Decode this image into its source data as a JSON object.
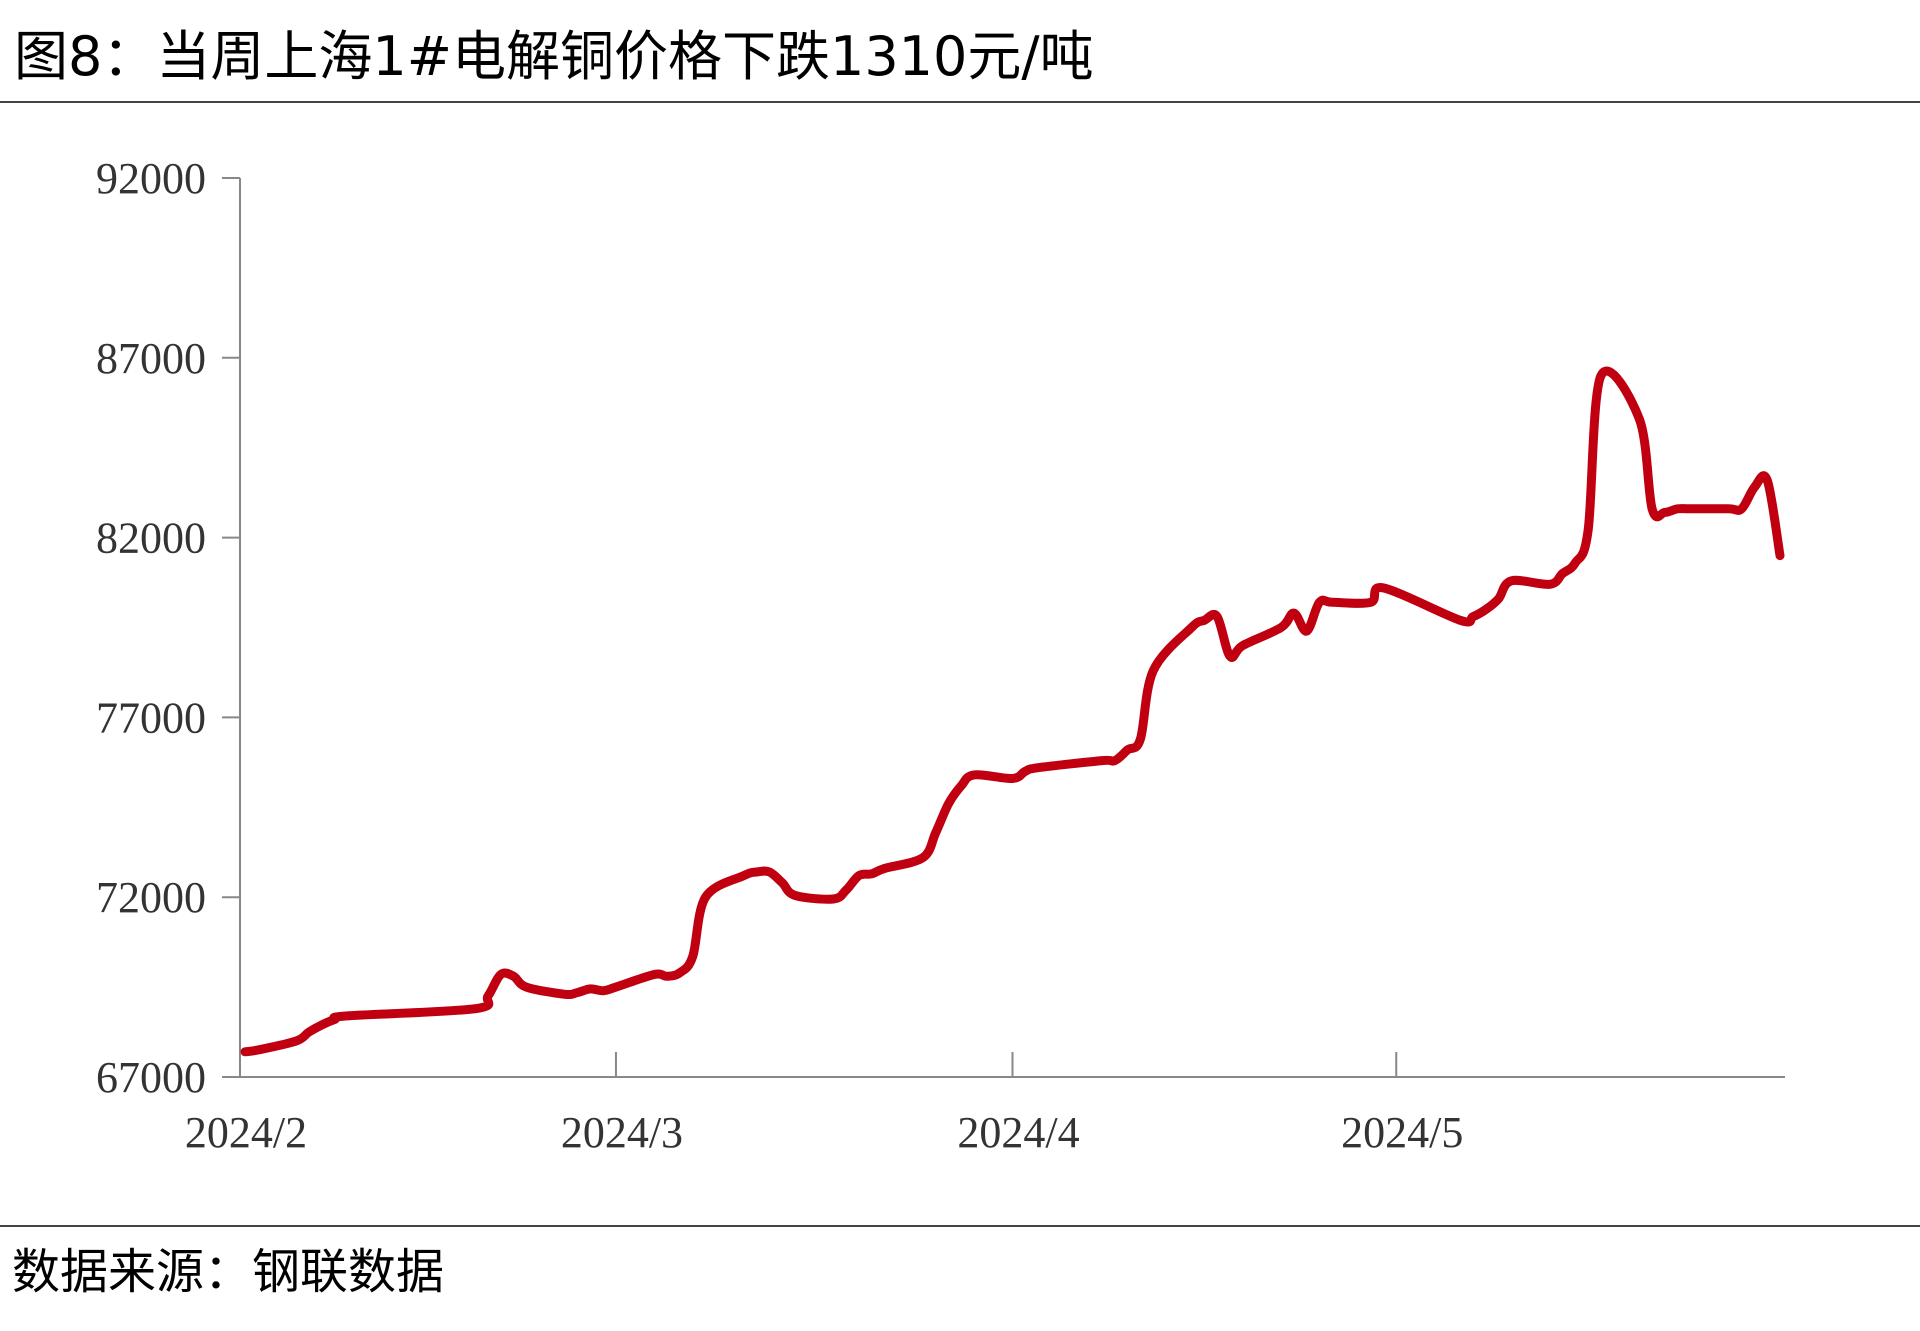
{
  "header": {
    "title": "图8：当周上海1#电解铜价格下跌1310元/吨"
  },
  "footer": {
    "source": "数据来源：钢联数据"
  },
  "colors": {
    "line": "#c00010",
    "axis": "#888888",
    "text": "#333333"
  },
  "chart_data": {
    "type": "line",
    "title": "图8：当周上海1#电解铜价格下跌1310元/吨",
    "xlabel": "",
    "ylabel": "",
    "ylim": [
      67000,
      92000
    ],
    "yticks": [
      "92000",
      "87000",
      "82000",
      "77000",
      "72000",
      "67000"
    ],
    "xticks": [
      "2024/2",
      "2024/3",
      "2024/4",
      "2024/5"
    ],
    "grid": false,
    "legend": "none",
    "series": [
      {
        "name": "",
        "x": [
          "2024-02-01",
          "2024-02-02",
          "2024-02-05",
          "2024-02-06",
          "2024-02-07",
          "2024-02-08",
          "2024-02-09",
          "2024-02-19",
          "2024-02-20",
          "2024-02-21",
          "2024-02-22",
          "2024-02-23",
          "2024-02-26",
          "2024-02-27",
          "2024-02-28",
          "2024-02-29",
          "2024-03-01",
          "2024-03-04",
          "2024-03-05",
          "2024-03-06",
          "2024-03-07",
          "2024-03-08",
          "2024-03-11",
          "2024-03-12",
          "2024-03-13",
          "2024-03-14",
          "2024-03-15",
          "2024-03-18",
          "2024-03-19",
          "2024-03-20",
          "2024-03-21",
          "2024-03-22",
          "2024-03-25",
          "2024-03-26",
          "2024-03-27",
          "2024-03-28",
          "2024-03-29",
          "2024-04-01",
          "2024-04-02",
          "2024-04-03",
          "2024-04-08",
          "2024-04-09",
          "2024-04-10",
          "2024-04-11",
          "2024-04-12",
          "2024-04-15",
          "2024-04-16",
          "2024-04-17",
          "2024-04-18",
          "2024-04-19",
          "2024-04-22",
          "2024-04-23",
          "2024-04-24",
          "2024-04-25",
          "2024-04-26",
          "2024-04-29",
          "2024-04-30",
          "2024-05-06",
          "2024-05-07",
          "2024-05-08",
          "2024-05-09",
          "2024-05-10",
          "2024-05-13",
          "2024-05-14",
          "2024-05-15",
          "2024-05-16",
          "2024-05-17",
          "2024-05-20",
          "2024-05-21",
          "2024-05-22",
          "2024-05-23",
          "2024-05-24",
          "2024-05-27",
          "2024-05-28",
          "2024-05-29",
          "2024-05-30",
          "2024-05-31"
        ],
        "values": [
          67700,
          67750,
          68000,
          68250,
          68450,
          68600,
          68700,
          68900,
          69250,
          69850,
          69800,
          69500,
          69300,
          69350,
          69450,
          69400,
          69500,
          69850,
          69800,
          69900,
          70350,
          72000,
          72600,
          72700,
          72700,
          72400,
          72050,
          71950,
          72200,
          72600,
          72650,
          72800,
          73100,
          73800,
          74600,
          75100,
          75400,
          75300,
          75500,
          75600,
          75800,
          75800,
          76100,
          76400,
          78300,
          79500,
          79700,
          79800,
          78700,
          79000,
          79500,
          79900,
          79400,
          80200,
          80200,
          80200,
          80600,
          79700,
          79800,
          80000,
          80300,
          80800,
          80700,
          81000,
          81300,
          82200,
          86500,
          85300,
          82800,
          82700,
          82800,
          82800,
          82800,
          82800,
          83400,
          83600,
          81500
        ]
      }
    ]
  }
}
